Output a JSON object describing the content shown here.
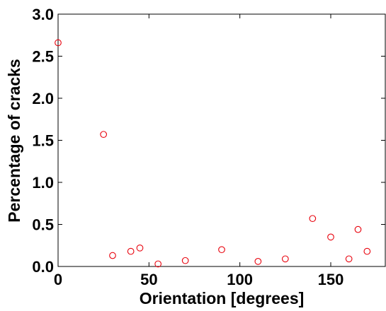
{
  "chart_data": {
    "type": "scatter",
    "xlabel": "Orientation [degrees]",
    "ylabel": "Percentage of cracks",
    "xlim": [
      0,
      180
    ],
    "ylim": [
      0,
      3.0
    ],
    "x_ticks": [
      "0",
      "50",
      "100",
      "150"
    ],
    "y_ticks": [
      "0.0",
      "0.5",
      "1.0",
      "1.5",
      "2.0",
      "2.5",
      "3.0"
    ],
    "grid": false,
    "marker": "open-circle",
    "marker_color": "#e8000b",
    "points": [
      {
        "x": 0,
        "y": 2.66
      },
      {
        "x": 25,
        "y": 1.57
      },
      {
        "x": 30,
        "y": 0.13
      },
      {
        "x": 40,
        "y": 0.18
      },
      {
        "x": 45,
        "y": 0.22
      },
      {
        "x": 55,
        "y": 0.03
      },
      {
        "x": 70,
        "y": 0.07
      },
      {
        "x": 90,
        "y": 0.2
      },
      {
        "x": 110,
        "y": 0.06
      },
      {
        "x": 125,
        "y": 0.09
      },
      {
        "x": 140,
        "y": 0.57
      },
      {
        "x": 150,
        "y": 0.35
      },
      {
        "x": 160,
        "y": 0.09
      },
      {
        "x": 165,
        "y": 0.44
      },
      {
        "x": 170,
        "y": 0.18
      }
    ]
  }
}
